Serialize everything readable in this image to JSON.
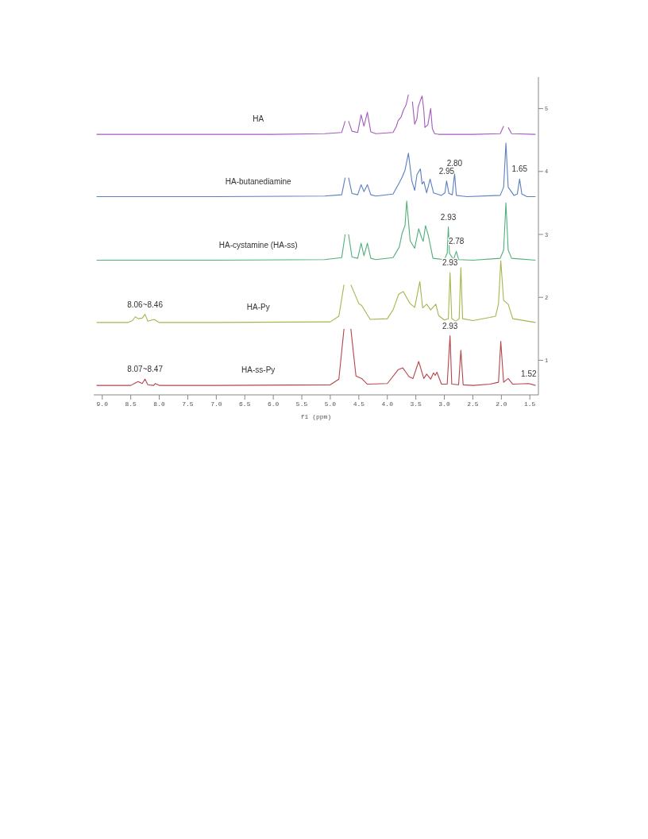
{
  "chart_data": {
    "type": "line",
    "xlabel": "f1 (ppm)",
    "xlim": [
      9.15,
      1.35
    ],
    "xticks": [
      {
        "value": 9,
        "label": "9.0"
      },
      {
        "value": 8.5,
        "label": "8.5"
      },
      {
        "value": 8,
        "label": "8.0"
      },
      {
        "value": 7.5,
        "label": "7.5"
      },
      {
        "value": 7,
        "label": "7.0"
      },
      {
        "value": 6.5,
        "label": "6.5"
      },
      {
        "value": 6,
        "label": "6.0"
      },
      {
        "value": 5.5,
        "label": "5.5"
      },
      {
        "value": 5,
        "label": "5.0"
      },
      {
        "value": 4.5,
        "label": "4.5"
      },
      {
        "value": 4,
        "label": "4.0"
      },
      {
        "value": 3.5,
        "label": "3.5"
      },
      {
        "value": 3,
        "label": "3.0"
      },
      {
        "value": 2.5,
        "label": "2.5"
      },
      {
        "value": 2,
        "label": "2.0"
      },
      {
        "value": 1.5,
        "label": "1.5"
      }
    ],
    "ylim": [
      0.45,
      5.5
    ],
    "yticks": [
      1,
      2,
      3,
      4,
      5
    ],
    "series": [
      {
        "name": "HA",
        "color": "#a35cbd",
        "x": [
          9.1,
          8.0,
          6.0,
          5.1,
          4.8,
          4.74,
          4.71,
          4.68,
          4.62,
          4.52,
          4.46,
          4.41,
          4.35,
          4.29,
          4.2,
          3.9,
          3.84,
          3.81,
          3.76,
          3.72,
          3.67,
          3.63,
          3.6,
          3.56,
          3.52,
          3.48,
          3.46,
          3.42,
          3.39,
          3.36,
          3.34,
          3.29,
          3.24,
          3.21,
          3.17,
          3.1,
          2.5,
          2.02,
          1.96,
          1.92,
          1.88,
          1.82,
          1.4
        ],
        "values": [
          4.59,
          4.59,
          4.59,
          4.6,
          4.62,
          4.8,
          null,
          4.8,
          4.64,
          4.62,
          4.9,
          4.72,
          4.94,
          4.63,
          4.6,
          4.62,
          4.72,
          4.81,
          4.86,
          4.97,
          5.06,
          5.22,
          null,
          5.11,
          4.75,
          4.84,
          5.02,
          5.13,
          5.2,
          4.97,
          4.7,
          4.74,
          5.0,
          4.68,
          4.6,
          4.59,
          4.59,
          4.6,
          4.72,
          null,
          4.7,
          4.6,
          4.59
        ]
      },
      {
        "name": "HA-butanediamine",
        "color": "#5b7fbf",
        "x": [
          9.1,
          7.0,
          5.1,
          4.8,
          4.74,
          4.71,
          4.68,
          4.62,
          4.52,
          4.46,
          4.41,
          4.35,
          4.29,
          4.2,
          3.9,
          3.79,
          3.74,
          3.69,
          3.63,
          3.57,
          3.52,
          3.48,
          3.42,
          3.39,
          3.36,
          3.31,
          3.25,
          3.19,
          3.05,
          2.99,
          2.96,
          2.92,
          2.86,
          2.82,
          2.79,
          2.7,
          2.6,
          2.02,
          1.96,
          1.92,
          1.88,
          1.78,
          1.72,
          1.68,
          1.64,
          1.55,
          1.4
        ],
        "values": [
          3.6,
          3.6,
          3.61,
          3.63,
          3.9,
          null,
          3.9,
          3.65,
          3.63,
          3.79,
          3.68,
          3.79,
          3.63,
          3.61,
          3.64,
          3.82,
          3.91,
          4.02,
          4.29,
          3.85,
          3.7,
          3.95,
          4.04,
          3.8,
          3.84,
          3.66,
          3.88,
          3.66,
          3.62,
          3.66,
          3.85,
          3.65,
          3.63,
          3.97,
          3.62,
          3.61,
          3.6,
          3.62,
          3.75,
          4.45,
          3.75,
          3.62,
          3.64,
          3.88,
          3.64,
          3.6,
          3.6
        ]
      },
      {
        "name": "HA-cystamine (HA-ss)",
        "color": "#4fb07a",
        "x": [
          9.1,
          7.0,
          5.1,
          4.8,
          4.74,
          4.71,
          4.68,
          4.62,
          4.52,
          4.46,
          4.41,
          4.35,
          4.29,
          4.2,
          3.9,
          3.79,
          3.74,
          3.69,
          3.66,
          3.6,
          3.52,
          3.45,
          3.4,
          3.37,
          3.33,
          3.28,
          3.2,
          3.0,
          2.95,
          2.93,
          2.91,
          2.84,
          2.79,
          2.75,
          2.5,
          2.02,
          1.96,
          1.92,
          1.88,
          1.82,
          1.4
        ],
        "values": [
          2.59,
          2.59,
          2.6,
          2.63,
          3.0,
          null,
          3.0,
          2.64,
          2.62,
          2.86,
          2.66,
          2.86,
          2.62,
          2.6,
          2.63,
          2.8,
          3.02,
          3.14,
          3.53,
          2.9,
          2.78,
          3.09,
          2.95,
          2.89,
          3.14,
          2.98,
          2.62,
          2.6,
          2.7,
          3.12,
          2.7,
          2.6,
          2.73,
          2.6,
          2.59,
          2.62,
          2.75,
          3.5,
          2.75,
          2.62,
          2.59
        ]
      },
      {
        "name": "HA-Py",
        "color": "#a8b44c",
        "x": [
          9.1,
          8.55,
          8.47,
          8.42,
          8.37,
          8.3,
          8.25,
          8.2,
          8.09,
          8.0,
          7.0,
          5.0,
          4.85,
          4.76,
          4.7,
          4.64,
          4.5,
          4.45,
          4.3,
          4.0,
          3.9,
          3.8,
          3.72,
          3.6,
          3.52,
          3.43,
          3.38,
          3.31,
          3.24,
          3.15,
          3.1,
          3.0,
          2.93,
          2.9,
          2.87,
          2.8,
          2.74,
          2.71,
          2.68,
          2.5,
          2.2,
          2.1,
          2.05,
          2.01,
          1.96,
          1.88,
          1.8,
          1.4
        ],
        "values": [
          1.6,
          1.6,
          1.63,
          1.69,
          1.66,
          1.67,
          1.73,
          1.62,
          1.65,
          1.6,
          1.6,
          1.61,
          1.7,
          2.2,
          null,
          2.2,
          1.9,
          1.87,
          1.65,
          1.66,
          1.8,
          2.05,
          2.09,
          1.9,
          1.84,
          2.25,
          1.83,
          1.89,
          1.8,
          1.89,
          1.71,
          1.64,
          1.66,
          2.39,
          1.66,
          1.62,
          1.66,
          2.47,
          1.66,
          1.63,
          1.68,
          1.7,
          1.9,
          2.58,
          1.95,
          1.89,
          1.66,
          1.6
        ]
      },
      {
        "name": "HA-ss-Py",
        "color": "#b5454a",
        "x": [
          9.1,
          8.5,
          8.42,
          8.37,
          8.3,
          8.25,
          8.2,
          8.1,
          8.07,
          8.0,
          7.0,
          5.0,
          4.85,
          4.76,
          4.7,
          4.64,
          4.55,
          4.45,
          4.35,
          4.0,
          3.81,
          3.73,
          3.62,
          3.55,
          3.45,
          3.36,
          3.31,
          3.24,
          3.19,
          3.16,
          3.13,
          3.05,
          2.95,
          2.9,
          2.87,
          2.75,
          2.71,
          2.67,
          2.5,
          2.2,
          2.05,
          2.01,
          1.96,
          1.88,
          1.8,
          1.52,
          1.4
        ],
        "values": [
          0.6,
          0.6,
          0.64,
          0.66,
          0.63,
          0.7,
          0.61,
          0.6,
          0.63,
          0.6,
          0.6,
          0.61,
          0.7,
          1.5,
          null,
          1.5,
          0.75,
          0.71,
          0.62,
          0.63,
          0.85,
          0.88,
          0.74,
          0.71,
          0.98,
          0.71,
          0.78,
          0.7,
          0.8,
          0.76,
          0.81,
          0.62,
          0.62,
          1.39,
          0.62,
          0.61,
          1.16,
          0.61,
          0.6,
          0.62,
          0.65,
          1.3,
          0.65,
          0.71,
          0.62,
          0.63,
          0.6
        ]
      }
    ],
    "annotations": [
      {
        "text": "2.95",
        "x": 2.96,
        "y": 3.85
      },
      {
        "text": "2.80",
        "x": 2.82,
        "y": 3.97
      },
      {
        "text": "1.65",
        "x": 1.68,
        "y": 3.88
      },
      {
        "text": "2.93",
        "x": 2.93,
        "y": 3.12
      },
      {
        "text": "2.78",
        "x": 2.79,
        "y": 2.73
      },
      {
        "text": "8.06~8.46",
        "x": 8.25,
        "y": 1.73
      },
      {
        "text": "2.93",
        "x": 2.9,
        "y": 2.39
      },
      {
        "text": "8.07~8.47",
        "x": 8.25,
        "y": 0.7
      },
      {
        "text": "2.93",
        "x": 2.9,
        "y": 1.39
      },
      {
        "text": "1.52",
        "x": 1.52,
        "y": 0.63
      }
    ]
  }
}
